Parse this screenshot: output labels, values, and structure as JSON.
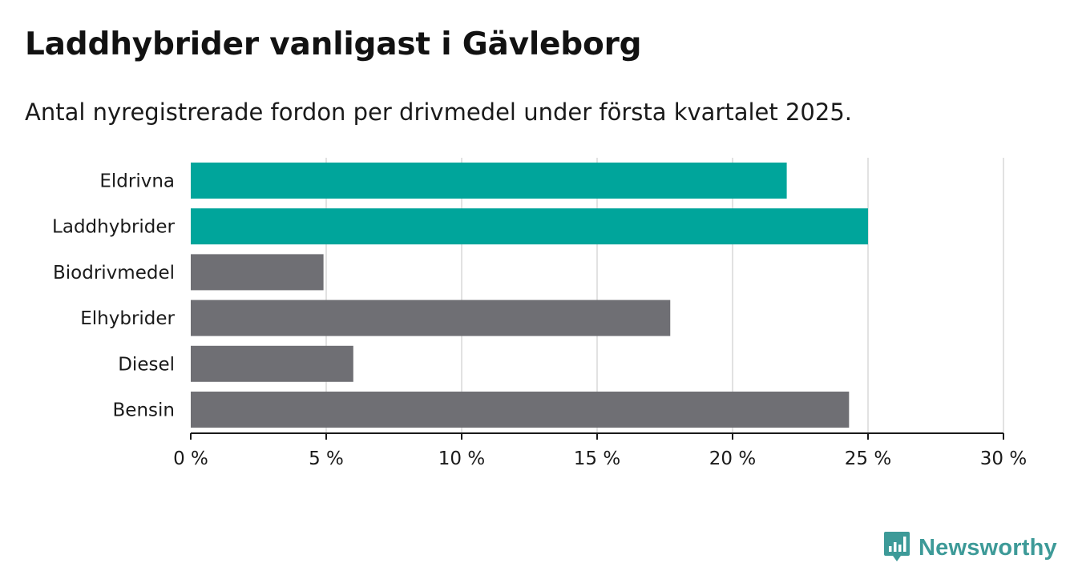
{
  "header": {
    "title": "Laddhybrider vanligast i Gävleborg",
    "subtitle": "Antal nyregistrerade fordon per drivmedel under första kvartalet 2025."
  },
  "brand": {
    "name": "Newsworthy",
    "icon": "chart-bubble-icon",
    "color": "#3d9a98"
  },
  "colors": {
    "highlight": "#00a59b",
    "default": "#6f6f74"
  },
  "chart_data": {
    "type": "bar",
    "orientation": "horizontal",
    "categories": [
      "Eldrivna",
      "Laddhybrider",
      "Biodrivmedel",
      "Elhybrider",
      "Diesel",
      "Bensin"
    ],
    "values": [
      22,
      25,
      4.9,
      17.7,
      6,
      24.3
    ],
    "highlight": [
      true,
      true,
      false,
      false,
      false,
      false
    ],
    "unit": "%",
    "xlim": [
      0,
      30
    ],
    "xticks": [
      0,
      5,
      10,
      15,
      20,
      25,
      30
    ],
    "xtick_labels": [
      "0 %",
      "5 %",
      "10 %",
      "15 %",
      "20 %",
      "25 %",
      "30 %"
    ],
    "grid": true,
    "title": "Laddhybrider vanligast i Gävleborg",
    "xlabel": "",
    "ylabel": ""
  }
}
